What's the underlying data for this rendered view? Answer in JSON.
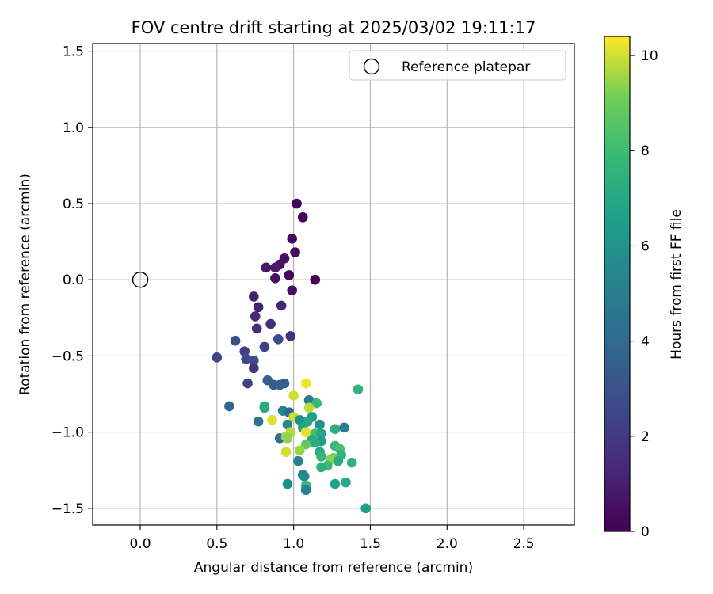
{
  "chart_data": {
    "type": "scatter",
    "title": "FOV centre drift starting at 2025/03/02 19:11:17",
    "xlabel": "Angular distance from reference (arcmin)",
    "ylabel": "Rotation from reference (arcmin)",
    "xlim": [
      -0.31,
      2.83
    ],
    "ylim": [
      -1.61,
      1.55
    ],
    "xticks": [
      "0.0",
      "0.5",
      "1.0",
      "1.5",
      "2.0",
      "2.5"
    ],
    "xtick_values": [
      0,
      0.5,
      1.0,
      1.5,
      2.0,
      2.5
    ],
    "yticks": [
      "−1.5",
      "−1.0",
      "−0.5",
      "0.0",
      "0.5",
      "1.0",
      "1.5"
    ],
    "ytick_values": [
      -1.5,
      -1.0,
      -0.5,
      0,
      0.5,
      1.0,
      1.5
    ],
    "grid": true,
    "legend": {
      "position": "top-right",
      "entries": [
        "Reference platepar"
      ]
    },
    "reference_point": {
      "name": "Reference platepar",
      "x": 0.0,
      "y": 0.0
    },
    "colorbar": {
      "label": "Hours from first FF file",
      "colormap": "viridis",
      "range": [
        0,
        10.4
      ],
      "ticks": [
        "0",
        "2",
        "4",
        "6",
        "8",
        "10"
      ],
      "tick_values": [
        0,
        2,
        4,
        6,
        8,
        10
      ]
    },
    "series": [
      {
        "points": [
          {
            "x": 1.02,
            "y": 0.5,
            "c": 0.1
          },
          {
            "x": 1.06,
            "y": 0.41,
            "c": 0.2
          },
          {
            "x": 0.99,
            "y": 0.27,
            "c": 0.3
          },
          {
            "x": 1.01,
            "y": 0.18,
            "c": 0.4
          },
          {
            "x": 0.94,
            "y": 0.14,
            "c": 0.5
          },
          {
            "x": 0.91,
            "y": 0.1,
            "c": 0.6
          },
          {
            "x": 0.82,
            "y": 0.08,
            "c": 0.7
          },
          {
            "x": 0.88,
            "y": 0.08,
            "c": 0.8
          },
          {
            "x": 0.97,
            "y": 0.03,
            "c": 0.2
          },
          {
            "x": 0.88,
            "y": 0.01,
            "c": 0.5
          },
          {
            "x": 1.14,
            "y": 0.0,
            "c": 0.1
          },
          {
            "x": 0.99,
            "y": -0.07,
            "c": 0.4
          },
          {
            "x": 0.74,
            "y": -0.11,
            "c": 1.0
          },
          {
            "x": 0.77,
            "y": -0.18,
            "c": 1.1
          },
          {
            "x": 0.92,
            "y": -0.17,
            "c": 1.2
          },
          {
            "x": 0.75,
            "y": -0.24,
            "c": 1.3
          },
          {
            "x": 0.85,
            "y": -0.29,
            "c": 1.4
          },
          {
            "x": 0.76,
            "y": -0.32,
            "c": 1.5
          },
          {
            "x": 0.98,
            "y": -0.37,
            "c": 1.6
          },
          {
            "x": 0.9,
            "y": -0.39,
            "c": 2.6
          },
          {
            "x": 0.62,
            "y": -0.4,
            "c": 2.8
          },
          {
            "x": 0.81,
            "y": -0.44,
            "c": 2.2
          },
          {
            "x": 0.68,
            "y": -0.47,
            "c": 2.3
          },
          {
            "x": 0.5,
            "y": -0.51,
            "c": 2.5
          },
          {
            "x": 0.69,
            "y": -0.52,
            "c": 2.7
          },
          {
            "x": 0.74,
            "y": -0.53,
            "c": 2.9
          },
          {
            "x": 0.74,
            "y": -0.58,
            "c": 1.8
          },
          {
            "x": 0.83,
            "y": -0.66,
            "c": 3.6
          },
          {
            "x": 0.7,
            "y": -0.68,
            "c": 2.4
          },
          {
            "x": 0.87,
            "y": -0.69,
            "c": 3.4
          },
          {
            "x": 0.91,
            "y": -0.69,
            "c": 3.5
          },
          {
            "x": 0.94,
            "y": -0.68,
            "c": 3.7
          },
          {
            "x": 1.08,
            "y": -0.68,
            "c": 10.3
          },
          {
            "x": 1.42,
            "y": -0.72,
            "c": 7.6
          },
          {
            "x": 1.0,
            "y": -0.76,
            "c": 10.0
          },
          {
            "x": 1.1,
            "y": -0.79,
            "c": 4.9
          },
          {
            "x": 1.15,
            "y": -0.81,
            "c": 7.9
          },
          {
            "x": 0.58,
            "y": -0.83,
            "c": 3.8
          },
          {
            "x": 0.81,
            "y": -0.84,
            "c": 6.2
          },
          {
            "x": 0.81,
            "y": -0.83,
            "c": 7.2
          },
          {
            "x": 1.1,
            "y": -0.84,
            "c": 9.8
          },
          {
            "x": 0.93,
            "y": -0.86,
            "c": 5.4
          },
          {
            "x": 0.97,
            "y": -0.87,
            "c": 4.1
          },
          {
            "x": 1.0,
            "y": -0.9,
            "c": 9.9
          },
          {
            "x": 1.04,
            "y": -0.92,
            "c": 5.8
          },
          {
            "x": 1.12,
            "y": -0.9,
            "c": 6.5
          },
          {
            "x": 0.86,
            "y": -0.92,
            "c": 10.1
          },
          {
            "x": 0.77,
            "y": -0.93,
            "c": 4.6
          },
          {
            "x": 1.09,
            "y": -0.93,
            "c": 7.0
          },
          {
            "x": 0.96,
            "y": -0.95,
            "c": 5.5
          },
          {
            "x": 1.17,
            "y": -0.95,
            "c": 6.1
          },
          {
            "x": 1.06,
            "y": -0.97,
            "c": 6.8
          },
          {
            "x": 1.27,
            "y": -0.98,
            "c": 7.4
          },
          {
            "x": 1.33,
            "y": -0.97,
            "c": 5.0
          },
          {
            "x": 0.98,
            "y": -1.0,
            "c": 9.7
          },
          {
            "x": 1.08,
            "y": -1.0,
            "c": 10.2
          },
          {
            "x": 1.14,
            "y": -1.01,
            "c": 8.1
          },
          {
            "x": 1.18,
            "y": -1.01,
            "c": 6.9
          },
          {
            "x": 0.91,
            "y": -1.04,
            "c": 4.3
          },
          {
            "x": 0.95,
            "y": -1.03,
            "c": 9.6
          },
          {
            "x": 0.96,
            "y": -1.04,
            "c": 9.4
          },
          {
            "x": 1.12,
            "y": -1.05,
            "c": 7.1
          },
          {
            "x": 1.18,
            "y": -1.06,
            "c": 6.4
          },
          {
            "x": 1.08,
            "y": -1.08,
            "c": 8.8
          },
          {
            "x": 1.14,
            "y": -1.07,
            "c": 7.3
          },
          {
            "x": 1.27,
            "y": -1.09,
            "c": 7.8
          },
          {
            "x": 1.3,
            "y": -1.11,
            "c": 8.2
          },
          {
            "x": 1.04,
            "y": -1.12,
            "c": 9.5
          },
          {
            "x": 1.17,
            "y": -1.13,
            "c": 7.0
          },
          {
            "x": 0.95,
            "y": -1.13,
            "c": 10.0
          },
          {
            "x": 1.31,
            "y": -1.15,
            "c": 7.5
          },
          {
            "x": 1.18,
            "y": -1.16,
            "c": 7.7
          },
          {
            "x": 1.26,
            "y": -1.17,
            "c": 9.1
          },
          {
            "x": 1.24,
            "y": -1.18,
            "c": 9.3
          },
          {
            "x": 1.03,
            "y": -1.19,
            "c": 5.1
          },
          {
            "x": 1.38,
            "y": -1.2,
            "c": 7.6
          },
          {
            "x": 1.29,
            "y": -1.19,
            "c": 7.2
          },
          {
            "x": 1.22,
            "y": -1.22,
            "c": 7.9
          },
          {
            "x": 1.18,
            "y": -1.23,
            "c": 7.4
          },
          {
            "x": 1.06,
            "y": -1.28,
            "c": 5.3
          },
          {
            "x": 1.07,
            "y": -1.29,
            "c": 5.6
          },
          {
            "x": 0.96,
            "y": -1.34,
            "c": 5.7
          },
          {
            "x": 1.27,
            "y": -1.34,
            "c": 6.7
          },
          {
            "x": 1.34,
            "y": -1.33,
            "c": 7.1
          },
          {
            "x": 1.08,
            "y": -1.35,
            "c": 7.9
          },
          {
            "x": 1.08,
            "y": -1.38,
            "c": 5.2
          },
          {
            "x": 1.47,
            "y": -1.5,
            "c": 6.6
          }
        ]
      }
    ]
  }
}
